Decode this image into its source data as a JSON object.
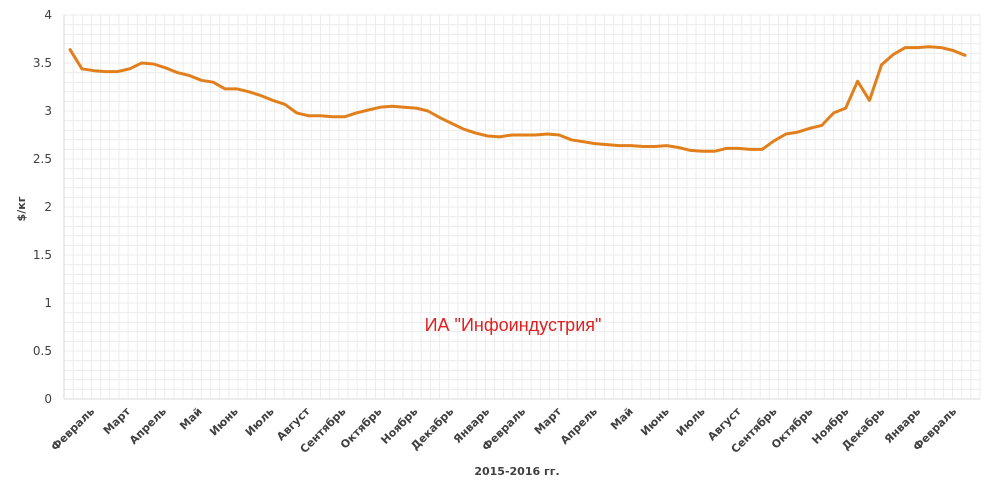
{
  "chart_data": {
    "type": "line",
    "title": "",
    "xlabel": "2015-2016 гг.",
    "ylabel": "$/кг",
    "ylim": [
      0,
      4
    ],
    "yticks": [
      "0",
      "0.5",
      "1",
      "1.5",
      "2",
      "2.5",
      "3",
      "3.5",
      "4"
    ],
    "grid": true,
    "watermark": "ИА \"Инфоиндустрия\"",
    "line_color": "#e07f1c",
    "month_labels": [
      "Февраль",
      "Март",
      "Апрель",
      "Май",
      "Июнь",
      "Июль",
      "Август",
      "Сентябрь",
      "Октябрь",
      "Ноябрь",
      "Декабрь",
      "Январь",
      "Февраль",
      "Март",
      "Апрель",
      "Май",
      "Июнь",
      "Июль",
      "Август",
      "Сентябрь",
      "Октябрь",
      "Ноябрь",
      "Декабрь",
      "Январь",
      "Февраль"
    ],
    "series": [
      {
        "values": [
          3.64,
          3.44,
          3.42,
          3.41,
          3.41,
          3.44,
          3.5,
          3.49,
          3.45,
          3.4,
          3.37,
          3.32,
          3.3,
          3.23,
          3.23,
          3.2,
          3.16,
          3.11,
          3.07,
          2.98,
          2.95,
          2.95,
          2.94,
          2.94,
          2.98,
          3.01,
          3.04,
          3.05,
          3.04,
          3.03,
          3.0,
          2.93,
          2.87,
          2.81,
          2.77,
          2.74,
          2.73,
          2.75,
          2.75,
          2.75,
          2.76,
          2.75,
          2.7,
          2.68,
          2.66,
          2.65,
          2.64,
          2.64,
          2.63,
          2.63,
          2.64,
          2.62,
          2.59,
          2.58,
          2.58,
          2.61,
          2.61,
          2.6,
          2.6,
          2.69,
          2.76,
          2.78,
          2.82,
          2.85,
          2.98,
          3.03,
          3.31,
          3.11,
          3.48,
          3.59,
          3.66,
          3.66,
          3.67,
          3.66,
          3.63,
          3.58
        ]
      }
    ]
  }
}
